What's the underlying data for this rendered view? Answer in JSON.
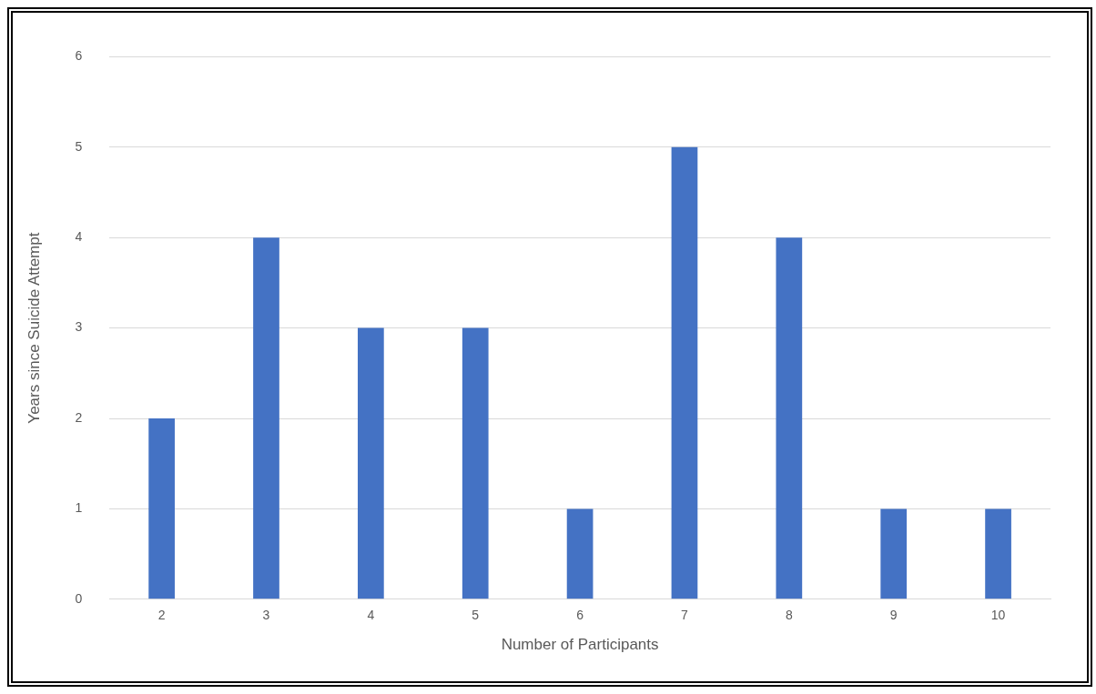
{
  "chart_data": {
    "type": "bar",
    "xlabel": "Number of Participants",
    "ylabel": "Years since Suicide Attempt",
    "categories": [
      "2",
      "3",
      "4",
      "5",
      "6",
      "7",
      "8",
      "9",
      "10"
    ],
    "values": [
      2,
      4,
      3,
      3,
      1,
      5,
      4,
      1,
      1
    ],
    "color": "#4472c4",
    "ylim": [
      0,
      6
    ],
    "yticks": [
      0,
      1,
      2,
      3,
      4,
      5,
      6
    ],
    "grid": "y"
  }
}
